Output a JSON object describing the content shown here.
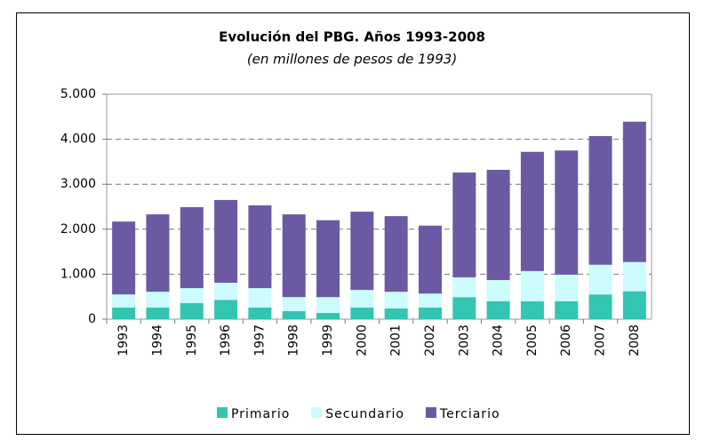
{
  "chart_data": {
    "type": "stacked_bar",
    "title": "Evolución del PBG. Años 1993-2008",
    "subtitle": "(en millones de pesos de 1993)",
    "categories": [
      "1993",
      "1994",
      "1995",
      "1996",
      "1997",
      "1998",
      "1999",
      "2000",
      "2001",
      "2002",
      "2003",
      "2004",
      "2005",
      "2006",
      "2007",
      "2008"
    ],
    "series": [
      {
        "name": "Primario",
        "color": "#33c4b2",
        "values": [
          260,
          260,
          360,
          430,
          260,
          180,
          140,
          260,
          240,
          260,
          490,
          400,
          400,
          400,
          550,
          620
        ]
      },
      {
        "name": "Secundario",
        "color": "#ccfcfc",
        "values": [
          290,
          350,
          330,
          380,
          430,
          310,
          350,
          390,
          370,
          310,
          440,
          470,
          670,
          590,
          660,
          650
        ]
      },
      {
        "name": "Terciario",
        "color": "#6b5aa3",
        "values": [
          1620,
          1720,
          1800,
          1840,
          1840,
          1840,
          1710,
          1740,
          1680,
          1510,
          2330,
          2450,
          2650,
          2760,
          2860,
          3120
        ]
      }
    ],
    "ylim": [
      0,
      5000
    ],
    "yticks": [
      0,
      {
        "value": 1000,
        "label": "1.000"
      },
      {
        "value": 2000,
        "label": "2.000"
      },
      {
        "value": 3000,
        "label": "3.000"
      },
      {
        "value": 4000,
        "label": "4.000"
      },
      {
        "value": 5000,
        "label": "5.000"
      }
    ],
    "grid": true,
    "legend": "bottom"
  }
}
